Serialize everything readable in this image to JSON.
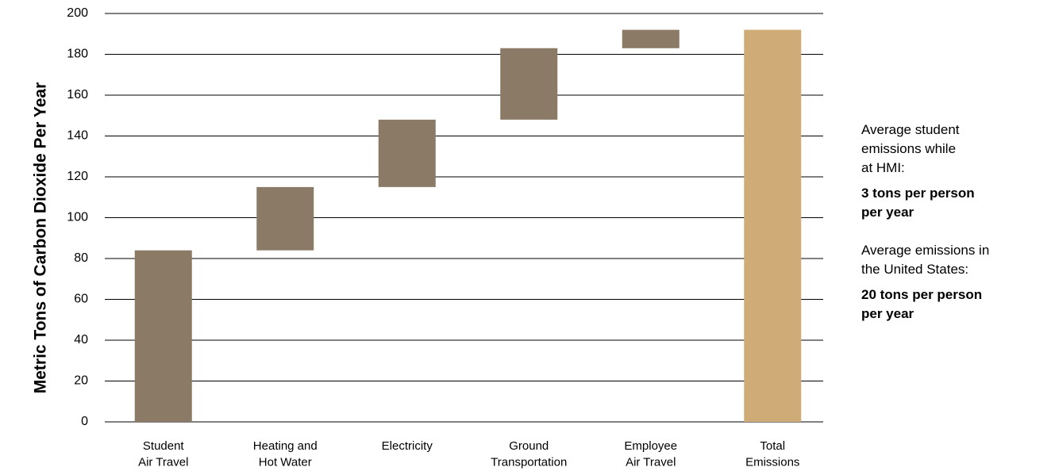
{
  "chart_data": {
    "type": "waterfall",
    "y_label": "Metric Tons of Carbon Dioxide Per Year",
    "categories": [
      "Student\nAir Travel",
      "Heating and\nHot Water",
      "Electricity",
      "Ground\nTransportation",
      "Employee\nAir Travel",
      "Total\nEmissions"
    ],
    "values": [
      84,
      31,
      33,
      35,
      9,
      192
    ],
    "is_total": [
      false,
      false,
      false,
      false,
      false,
      true
    ],
    "color": "#8b7a65",
    "total_color": "#cfab78",
    "ylim": [
      0,
      200
    ],
    "yticks": [
      0,
      20,
      40,
      60,
      80,
      100,
      120,
      140,
      160,
      180,
      200
    ],
    "grid": true,
    "annotations": [
      {
        "text": "Average student\nemissions while\nat HMI:",
        "highlight": "3 tons per person\nper year"
      },
      {
        "text": "Average emissions in\nthe United States:",
        "highlight": "20 tons per person\nper year"
      }
    ]
  }
}
